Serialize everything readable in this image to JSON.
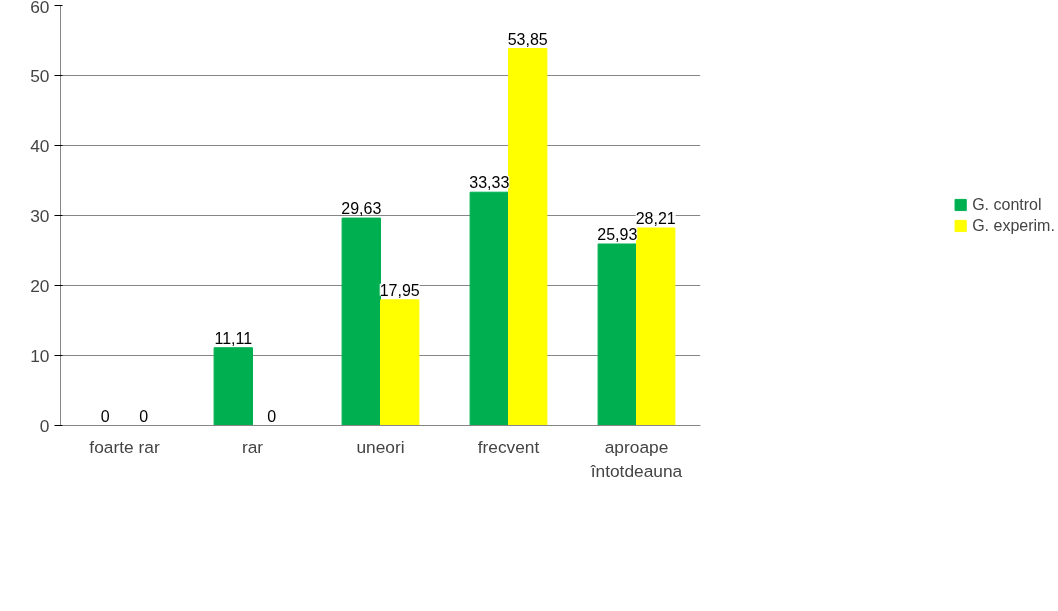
{
  "chart_data": {
    "type": "bar",
    "categories": [
      "foarte rar",
      "rar",
      "uneori",
      "frecvent",
      "aproape\nîntotdeauna"
    ],
    "series": [
      {
        "name": "G. control",
        "color": "#00b050",
        "values": [
          0,
          11.11,
          29.63,
          33.33,
          25.93
        ],
        "value_labels": [
          "0",
          "11,11",
          "29,63",
          "33,33",
          "25,93"
        ]
      },
      {
        "name": "G. experim.",
        "color": "#ffff00",
        "values": [
          0,
          0,
          17.95,
          53.85,
          28.21
        ],
        "value_labels": [
          "0",
          "0",
          "17,95",
          "53,85",
          "28,21"
        ]
      }
    ],
    "ylim": [
      0,
      60
    ],
    "yticks": [
      0,
      10,
      20,
      30,
      40,
      50,
      60
    ],
    "grid": "y",
    "legend": "right"
  }
}
